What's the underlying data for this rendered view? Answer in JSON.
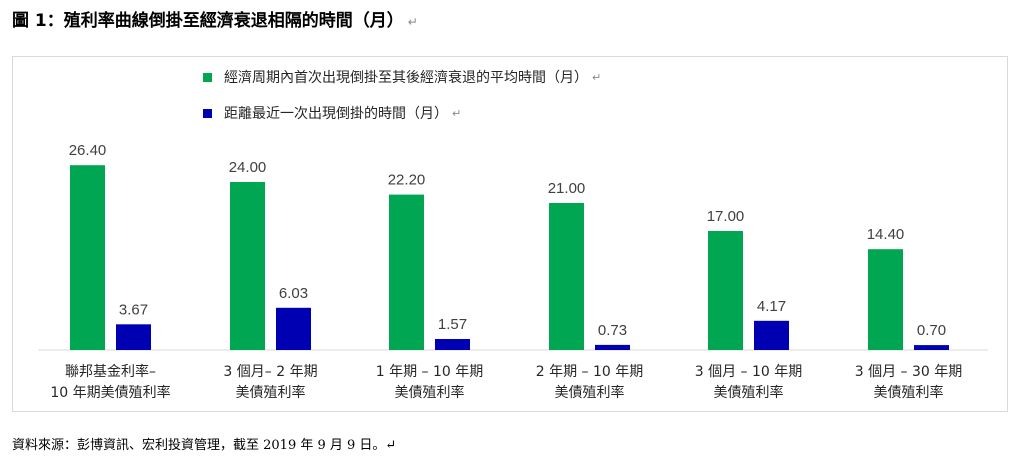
{
  "title": "圖 1：殖利率曲線倒掛至經濟衰退相隔的時間（月）",
  "title_mark": "↵",
  "colors": {
    "series1": "#00a651",
    "series2": "#0000b3"
  },
  "chart_data": {
    "type": "bar",
    "categories": [
      [
        "聯邦基金利率–",
        "10 年期美債殖利率"
      ],
      [
        "3 個月– 2 年期",
        "美債殖利率"
      ],
      [
        "1 年期 – 10 年期",
        "美債殖利率"
      ],
      [
        "2 年期 – 10 年期",
        "美債殖利率"
      ],
      [
        "3 個月 – 10 年期",
        "美債殖利率"
      ],
      [
        "3 個月 – 30 年期",
        "美債殖利率"
      ]
    ],
    "series": [
      {
        "name": "經濟周期內首次出現倒掛至其後經濟衰退的平均時間（月）",
        "values": [
          26.4,
          24.0,
          22.2,
          21.0,
          17.0,
          14.4
        ],
        "labels": [
          "26.40",
          "24.00",
          "22.20",
          "21.00",
          "17.00",
          "14.40"
        ]
      },
      {
        "name": "距離最近一次出現倒掛的時間（月）",
        "values": [
          3.67,
          6.03,
          1.57,
          0.73,
          4.17,
          0.7
        ],
        "labels": [
          "3.67",
          "6.03",
          "1.57",
          "0.73",
          "4.17",
          "0.70"
        ]
      }
    ],
    "ylim": [
      0,
      30
    ],
    "legend": "top",
    "grid": false
  },
  "source": "資料來源：彭博資訊、宏利投資管理，截至 2019 年 9 月 9 日。↵"
}
